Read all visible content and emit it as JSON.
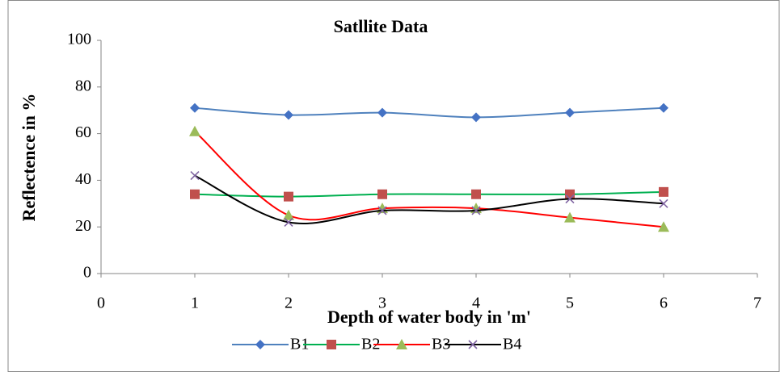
{
  "chart_data": {
    "type": "line",
    "title": "Satllite Data",
    "x_label": "Depth of water body in 'm'",
    "y_label": "Reflectence in %",
    "x": [
      1,
      2,
      3,
      4,
      5,
      6
    ],
    "series": [
      {
        "name": "B1",
        "color": "#4f81bd",
        "marker_color": "#4472c4",
        "marker": "diamond",
        "values": [
          71,
          68,
          69,
          67,
          69,
          71
        ]
      },
      {
        "name": "B2",
        "color": "#00b050",
        "marker_color": "#c0504d",
        "marker": "square",
        "values": [
          34,
          33,
          34,
          34,
          34,
          35
        ]
      },
      {
        "name": "B3",
        "color": "#ff0000",
        "marker_color": "#9bbb59",
        "marker": "triangle",
        "values": [
          61,
          25,
          28,
          28,
          24,
          20
        ]
      },
      {
        "name": "B4",
        "color": "#000000",
        "marker_color": "#8064a2",
        "marker": "x",
        "values": [
          42,
          22,
          27,
          27,
          32,
          30
        ]
      }
    ],
    "xlim": [
      0,
      7
    ],
    "xticks": [
      0,
      1,
      2,
      3,
      4,
      5,
      6,
      7
    ],
    "ylim": [
      0,
      100
    ],
    "yticks": [
      0,
      20,
      40,
      60,
      80,
      100
    ],
    "smooth": true,
    "grid": false,
    "legend": "bottom"
  }
}
